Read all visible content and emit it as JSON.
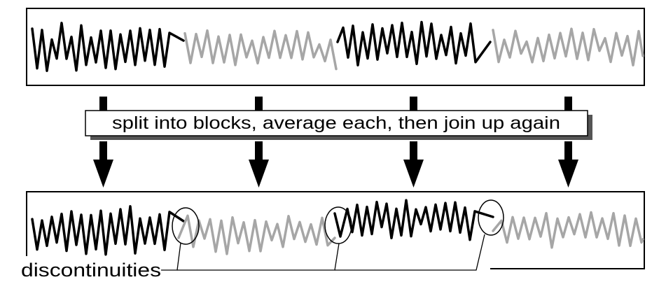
{
  "caption": "split into blocks, average each, then join up again",
  "label": "discontinuities",
  "colors": {
    "stroke_dark": "#000000",
    "stroke_light": "#a6a6a6",
    "shadow": "#555555",
    "background": "#ffffff"
  },
  "icons": {
    "arrow": "down-arrow-icon",
    "marker": "ellipse-circle-icon"
  }
}
